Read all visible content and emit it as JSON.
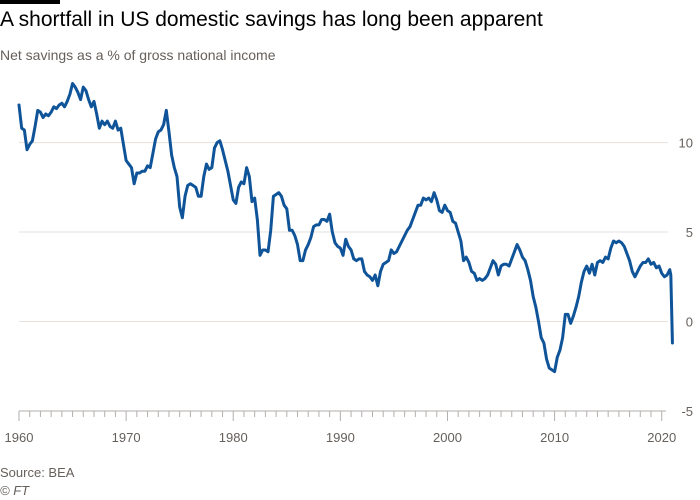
{
  "header": {
    "title": "A shortfall in US domestic savings has long been apparent",
    "subtitle": "Net savings as a % of gross national income"
  },
  "footer": {
    "source": "Source: BEA",
    "credit": "© FT"
  },
  "colors": {
    "line": "#0f5499",
    "grid": "#e6e1dc",
    "text": "#66605c"
  },
  "chart_data": {
    "type": "line",
    "title": "A shortfall in US domestic savings has long been apparent",
    "subtitle": "Net savings as a % of gross national income",
    "xlabel": "",
    "ylabel": "",
    "xlim": [
      1960,
      2020.4
    ],
    "ylim": [
      -5,
      14
    ],
    "x_ticks": [
      1960,
      1970,
      1980,
      1990,
      2000,
      2010,
      2020
    ],
    "y_ticks": [
      10,
      5,
      0,
      -5
    ],
    "grid": "horizontal",
    "legend": "none",
    "series": [
      {
        "points": [
          [
            1960.0,
            12.1
          ],
          [
            1960.25,
            10.8
          ],
          [
            1960.5,
            10.7
          ],
          [
            1960.75,
            9.6
          ],
          [
            1961.0,
            9.9
          ],
          [
            1961.25,
            10.1
          ],
          [
            1961.5,
            10.9
          ],
          [
            1961.75,
            11.8
          ],
          [
            1962.0,
            11.7
          ],
          [
            1962.25,
            11.4
          ],
          [
            1962.5,
            11.6
          ],
          [
            1962.75,
            11.5
          ],
          [
            1963.0,
            11.7
          ],
          [
            1963.25,
            12.0
          ],
          [
            1963.5,
            11.9
          ],
          [
            1963.75,
            12.1
          ],
          [
            1964.0,
            12.2
          ],
          [
            1964.25,
            12.0
          ],
          [
            1964.5,
            12.3
          ],
          [
            1964.75,
            12.7
          ],
          [
            1965.0,
            13.3
          ],
          [
            1965.25,
            13.1
          ],
          [
            1965.5,
            12.8
          ],
          [
            1965.75,
            12.4
          ],
          [
            1966.0,
            13.1
          ],
          [
            1966.25,
            12.9
          ],
          [
            1966.5,
            12.4
          ],
          [
            1966.75,
            12.0
          ],
          [
            1967.0,
            12.3
          ],
          [
            1967.25,
            11.6
          ],
          [
            1967.5,
            10.8
          ],
          [
            1967.75,
            11.2
          ],
          [
            1968.0,
            11.0
          ],
          [
            1968.25,
            11.2
          ],
          [
            1968.5,
            10.9
          ],
          [
            1968.75,
            10.8
          ],
          [
            1969.0,
            11.2
          ],
          [
            1969.25,
            10.7
          ],
          [
            1969.5,
            10.8
          ],
          [
            1969.75,
            9.9
          ],
          [
            1970.0,
            9.0
          ],
          [
            1970.25,
            8.8
          ],
          [
            1970.5,
            8.6
          ],
          [
            1970.75,
            7.7
          ],
          [
            1971.0,
            8.3
          ],
          [
            1971.25,
            8.3
          ],
          [
            1971.5,
            8.4
          ],
          [
            1971.75,
            8.4
          ],
          [
            1972.0,
            8.7
          ],
          [
            1972.25,
            8.6
          ],
          [
            1972.5,
            9.4
          ],
          [
            1972.75,
            10.2
          ],
          [
            1973.0,
            10.6
          ],
          [
            1973.25,
            10.7
          ],
          [
            1973.5,
            11.0
          ],
          [
            1973.75,
            11.8
          ],
          [
            1974.0,
            10.6
          ],
          [
            1974.25,
            9.3
          ],
          [
            1974.5,
            8.6
          ],
          [
            1974.75,
            8.1
          ],
          [
            1975.0,
            6.4
          ],
          [
            1975.25,
            5.8
          ],
          [
            1975.5,
            7.0
          ],
          [
            1975.75,
            7.6
          ],
          [
            1976.0,
            7.7
          ],
          [
            1976.25,
            7.6
          ],
          [
            1976.5,
            7.5
          ],
          [
            1976.75,
            7.0
          ],
          [
            1977.0,
            7.0
          ],
          [
            1977.25,
            8.1
          ],
          [
            1977.5,
            8.8
          ],
          [
            1977.75,
            8.5
          ],
          [
            1978.0,
            8.6
          ],
          [
            1978.25,
            9.7
          ],
          [
            1978.5,
            10.0
          ],
          [
            1978.75,
            10.1
          ],
          [
            1979.0,
            9.6
          ],
          [
            1979.25,
            9.0
          ],
          [
            1979.5,
            8.4
          ],
          [
            1979.75,
            7.6
          ],
          [
            1980.0,
            6.8
          ],
          [
            1980.25,
            6.6
          ],
          [
            1980.5,
            7.5
          ],
          [
            1980.75,
            7.8
          ],
          [
            1981.0,
            7.7
          ],
          [
            1981.25,
            8.6
          ],
          [
            1981.5,
            8.1
          ],
          [
            1981.75,
            6.7
          ],
          [
            1982.0,
            6.9
          ],
          [
            1982.25,
            5.7
          ],
          [
            1982.5,
            3.7
          ],
          [
            1982.75,
            4.0
          ],
          [
            1983.0,
            4.0
          ],
          [
            1983.25,
            3.9
          ],
          [
            1983.5,
            5.1
          ],
          [
            1983.75,
            7.0
          ],
          [
            1984.0,
            7.1
          ],
          [
            1984.25,
            7.2
          ],
          [
            1984.5,
            7.0
          ],
          [
            1984.75,
            6.5
          ],
          [
            1985.0,
            6.3
          ],
          [
            1985.25,
            5.1
          ],
          [
            1985.5,
            5.1
          ],
          [
            1985.75,
            4.8
          ],
          [
            1986.0,
            4.3
          ],
          [
            1986.25,
            3.4
          ],
          [
            1986.5,
            3.4
          ],
          [
            1986.75,
            4.0
          ],
          [
            1987.0,
            4.3
          ],
          [
            1987.25,
            4.7
          ],
          [
            1987.5,
            5.3
          ],
          [
            1987.75,
            5.4
          ],
          [
            1988.0,
            5.4
          ],
          [
            1988.25,
            5.7
          ],
          [
            1988.5,
            5.7
          ],
          [
            1988.75,
            5.6
          ],
          [
            1989.0,
            6.0
          ],
          [
            1989.25,
            5.0
          ],
          [
            1989.5,
            4.4
          ],
          [
            1989.75,
            4.2
          ],
          [
            1990.0,
            4.1
          ],
          [
            1990.25,
            3.7
          ],
          [
            1990.5,
            4.6
          ],
          [
            1990.75,
            4.2
          ],
          [
            1991.0,
            4.0
          ],
          [
            1991.25,
            3.5
          ],
          [
            1991.5,
            3.4
          ],
          [
            1991.75,
            3.5
          ],
          [
            1992.0,
            3.5
          ],
          [
            1992.25,
            2.8
          ],
          [
            1992.5,
            2.6
          ],
          [
            1992.75,
            2.5
          ],
          [
            1993.0,
            2.3
          ],
          [
            1993.25,
            2.6
          ],
          [
            1993.5,
            2.0
          ],
          [
            1993.75,
            2.8
          ],
          [
            1994.0,
            3.2
          ],
          [
            1994.25,
            3.3
          ],
          [
            1994.5,
            3.4
          ],
          [
            1994.75,
            4.0
          ],
          [
            1995.0,
            3.8
          ],
          [
            1995.25,
            3.9
          ],
          [
            1995.5,
            4.2
          ],
          [
            1995.75,
            4.5
          ],
          [
            1996.0,
            4.8
          ],
          [
            1996.25,
            5.1
          ],
          [
            1996.5,
            5.3
          ],
          [
            1996.75,
            5.7
          ],
          [
            1997.0,
            6.1
          ],
          [
            1997.25,
            6.5
          ],
          [
            1997.5,
            6.5
          ],
          [
            1997.75,
            6.9
          ],
          [
            1998.0,
            6.8
          ],
          [
            1998.25,
            6.9
          ],
          [
            1998.5,
            6.7
          ],
          [
            1998.75,
            7.2
          ],
          [
            1999.0,
            6.8
          ],
          [
            1999.25,
            6.2
          ],
          [
            1999.5,
            6.1
          ],
          [
            1999.75,
            6.5
          ],
          [
            2000.0,
            6.2
          ],
          [
            2000.25,
            6.1
          ],
          [
            2000.5,
            5.6
          ],
          [
            2000.75,
            5.5
          ],
          [
            2001.0,
            5.0
          ],
          [
            2001.25,
            4.5
          ],
          [
            2001.5,
            3.4
          ],
          [
            2001.75,
            3.6
          ],
          [
            2002.0,
            3.3
          ],
          [
            2002.25,
            2.8
          ],
          [
            2002.5,
            2.7
          ],
          [
            2002.75,
            2.3
          ],
          [
            2003.0,
            2.4
          ],
          [
            2003.25,
            2.3
          ],
          [
            2003.5,
            2.4
          ],
          [
            2003.75,
            2.6
          ],
          [
            2004.0,
            3.0
          ],
          [
            2004.25,
            3.4
          ],
          [
            2004.5,
            3.2
          ],
          [
            2004.75,
            2.6
          ],
          [
            2005.0,
            3.1
          ],
          [
            2005.25,
            3.2
          ],
          [
            2005.5,
            3.2
          ],
          [
            2005.75,
            3.1
          ],
          [
            2006.0,
            3.5
          ],
          [
            2006.25,
            3.9
          ],
          [
            2006.5,
            4.3
          ],
          [
            2006.75,
            4.0
          ],
          [
            2007.0,
            3.6
          ],
          [
            2007.25,
            3.4
          ],
          [
            2007.5,
            2.9
          ],
          [
            2007.75,
            2.3
          ],
          [
            2008.0,
            1.4
          ],
          [
            2008.25,
            0.8
          ],
          [
            2008.5,
            0.0
          ],
          [
            2008.75,
            -0.9
          ],
          [
            2009.0,
            -1.2
          ],
          [
            2009.25,
            -2.1
          ],
          [
            2009.5,
            -2.6
          ],
          [
            2009.75,
            -2.7
          ],
          [
            2010.0,
            -2.8
          ],
          [
            2010.25,
            -2.0
          ],
          [
            2010.5,
            -1.6
          ],
          [
            2010.75,
            -0.9
          ],
          [
            2011.0,
            0.4
          ],
          [
            2011.25,
            0.4
          ],
          [
            2011.5,
            -0.1
          ],
          [
            2011.75,
            0.3
          ],
          [
            2012.0,
            0.8
          ],
          [
            2012.25,
            1.4
          ],
          [
            2012.5,
            2.2
          ],
          [
            2012.75,
            2.8
          ],
          [
            2013.0,
            3.1
          ],
          [
            2013.25,
            2.7
          ],
          [
            2013.5,
            3.2
          ],
          [
            2013.75,
            2.6
          ],
          [
            2014.0,
            3.3
          ],
          [
            2014.25,
            3.4
          ],
          [
            2014.5,
            3.3
          ],
          [
            2014.75,
            3.6
          ],
          [
            2015.0,
            3.5
          ],
          [
            2015.25,
            4.1
          ],
          [
            2015.5,
            4.5
          ],
          [
            2015.75,
            4.4
          ],
          [
            2016.0,
            4.5
          ],
          [
            2016.25,
            4.4
          ],
          [
            2016.5,
            4.2
          ],
          [
            2016.75,
            3.8
          ],
          [
            2017.0,
            3.4
          ],
          [
            2017.25,
            2.8
          ],
          [
            2017.5,
            2.5
          ],
          [
            2017.75,
            2.8
          ],
          [
            2018.0,
            3.1
          ],
          [
            2018.25,
            3.3
          ],
          [
            2018.5,
            3.3
          ],
          [
            2018.75,
            3.5
          ],
          [
            2019.0,
            3.2
          ],
          [
            2019.25,
            3.3
          ],
          [
            2019.5,
            3.0
          ],
          [
            2019.75,
            3.1
          ],
          [
            2020.0,
            2.7
          ],
          [
            2020.25,
            2.5
          ],
          [
            2020.5,
            2.6
          ],
          [
            2020.75,
            2.9
          ],
          [
            2020.85,
            2.6
          ],
          [
            2021.0,
            -1.2
          ]
        ]
      }
    ]
  }
}
